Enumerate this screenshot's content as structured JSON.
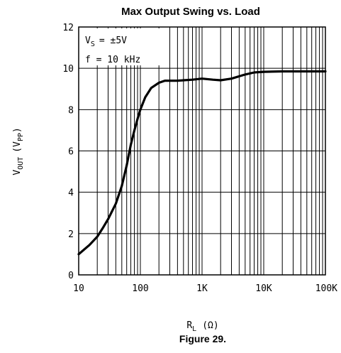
{
  "chart_data": {
    "type": "line",
    "title": "Max Output Swing vs. Load",
    "xlabel": "R",
    "xlabel_sub": "L",
    "xlabel_unit": "(Ω)",
    "ylabel": "V",
    "ylabel_sub": "OUT",
    "ylabel_unit_open": "(V",
    "ylabel_unit_sub": "PP",
    "ylabel_unit_close": ")",
    "x_scale": "log",
    "xlim": [
      10,
      100000
    ],
    "ylim": [
      0,
      12
    ],
    "grid": true,
    "x_ticks": [
      {
        "value": 10,
        "label": "10"
      },
      {
        "value": 100,
        "label": "100"
      },
      {
        "value": 1000,
        "label": "1K"
      },
      {
        "value": 10000,
        "label": "10K"
      },
      {
        "value": 100000,
        "label": "100K"
      }
    ],
    "y_ticks": [
      {
        "value": 0,
        "label": "0"
      },
      {
        "value": 2,
        "label": "2"
      },
      {
        "value": 4,
        "label": "4"
      },
      {
        "value": 6,
        "label": "6"
      },
      {
        "value": 8,
        "label": "8"
      },
      {
        "value": 10,
        "label": "10"
      },
      {
        "value": 12,
        "label": "12"
      }
    ],
    "annotations": {
      "vs_main": "V",
      "vs_sub": "S",
      "vs_value": "= ±5V",
      "freq": "f = 10 kHz"
    },
    "series": [
      {
        "x": [
          10,
          15,
          20,
          25,
          30,
          40,
          50,
          60,
          70,
          80,
          90,
          100,
          120,
          150,
          200,
          250,
          300,
          400,
          500,
          700,
          1000,
          1500,
          2000,
          3000,
          5000,
          7000,
          10000,
          20000,
          50000,
          100000
        ],
        "y": [
          1.0,
          1.45,
          1.85,
          2.3,
          2.7,
          3.45,
          4.3,
          5.3,
          6.3,
          7.0,
          7.55,
          8.0,
          8.6,
          9.05,
          9.3,
          9.4,
          9.4,
          9.4,
          9.42,
          9.45,
          9.5,
          9.45,
          9.42,
          9.5,
          9.7,
          9.8,
          9.83,
          9.85,
          9.85,
          9.85
        ]
      }
    ]
  },
  "caption": "Figure 29."
}
